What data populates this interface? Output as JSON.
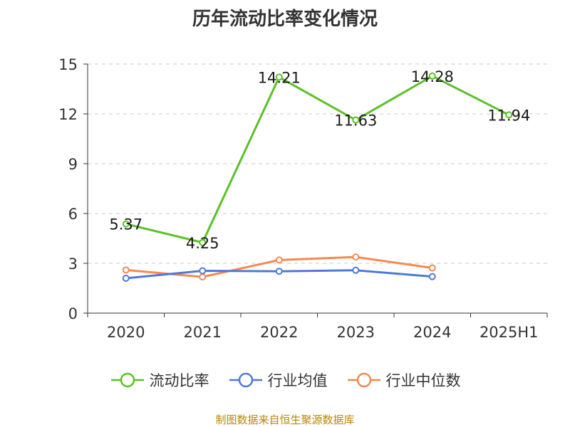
{
  "title": "历年流动比率变化情况",
  "footer": "制图数据来自恒生聚源数据库",
  "chart_data": {
    "type": "line",
    "categories": [
      "2020",
      "2021",
      "2022",
      "2023",
      "2024",
      "2025H1"
    ],
    "ylim": [
      0,
      15
    ],
    "yticks": [
      0,
      3,
      6,
      9,
      12,
      15
    ],
    "grid": true,
    "legend_position": "bottom",
    "series": [
      {
        "name": "流动比率",
        "color": "#5cc028",
        "values": [
          5.37,
          4.25,
          14.21,
          11.63,
          14.28,
          11.94
        ],
        "labels": [
          "5.37",
          "4.25",
          "14.21",
          "11.63",
          "14.28",
          "11.94"
        ]
      },
      {
        "name": "行业均值",
        "color": "#4e79d7",
        "values": [
          2.1,
          2.55,
          2.52,
          2.58,
          2.2,
          null
        ]
      },
      {
        "name": "行业中位数",
        "color": "#f5894f",
        "values": [
          2.6,
          2.18,
          3.2,
          3.38,
          2.72,
          null
        ]
      }
    ]
  }
}
